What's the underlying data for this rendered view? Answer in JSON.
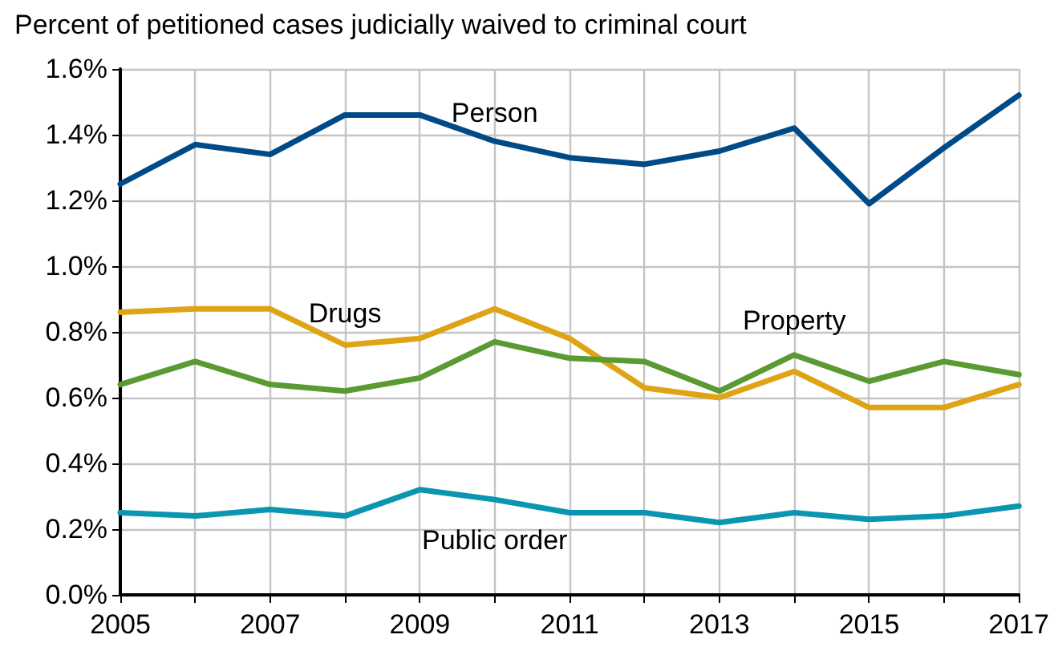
{
  "chart_data": {
    "type": "line",
    "title": "Percent of petitioned cases judicially waived to criminal court",
    "x": [
      2005,
      2006,
      2007,
      2008,
      2009,
      2010,
      2011,
      2012,
      2013,
      2014,
      2015,
      2016,
      2017
    ],
    "series": [
      {
        "name": "Person",
        "color": "#004a87",
        "values": [
          1.25,
          1.37,
          1.34,
          1.46,
          1.46,
          1.38,
          1.33,
          1.31,
          1.35,
          1.42,
          1.19,
          1.36,
          1.52
        ]
      },
      {
        "name": "Drugs",
        "color": "#dea416",
        "values": [
          0.86,
          0.87,
          0.87,
          0.76,
          0.78,
          0.87,
          0.78,
          0.63,
          0.6,
          0.68,
          0.57,
          0.57,
          0.64
        ]
      },
      {
        "name": "Property",
        "color": "#5b9a32",
        "values": [
          0.64,
          0.71,
          0.64,
          0.62,
          0.66,
          0.77,
          0.72,
          0.71,
          0.62,
          0.73,
          0.65,
          0.71,
          0.67
        ]
      },
      {
        "name": "Public order",
        "color": "#0a95b0",
        "values": [
          0.25,
          0.24,
          0.26,
          0.24,
          0.32,
          0.29,
          0.25,
          0.25,
          0.22,
          0.25,
          0.23,
          0.24,
          0.27
        ]
      }
    ],
    "xlim": [
      2005,
      2017
    ],
    "xticks": [
      2005,
      {
        "value": 2006,
        "label": null
      },
      2007,
      {
        "value": 2008,
        "label": null
      },
      2009,
      {
        "value": 2010,
        "label": null
      },
      2011,
      {
        "value": 2012,
        "label": null
      },
      2013,
      {
        "value": 2014,
        "label": null
      },
      2015,
      {
        "value": 2016,
        "label": null
      },
      2017
    ],
    "ylim": [
      0,
      1.6
    ],
    "yticks": [
      {
        "value": 0,
        "label": "0.0%"
      },
      {
        "value": 0.2,
        "label": "0.2%"
      },
      {
        "value": 0.4,
        "label": "0.4%"
      },
      {
        "value": 0.6,
        "label": "0.6%"
      },
      {
        "value": 0.8,
        "label": "0.8%"
      },
      {
        "value": 1.0,
        "label": "1.0%"
      },
      {
        "value": 1.2,
        "label": "1.2%"
      },
      {
        "value": 1.4,
        "label": "1.4%"
      },
      {
        "value": 1.6,
        "label": "1.6%"
      }
    ],
    "grid": true,
    "legend": false,
    "marker": "none",
    "line_style": "solid"
  }
}
